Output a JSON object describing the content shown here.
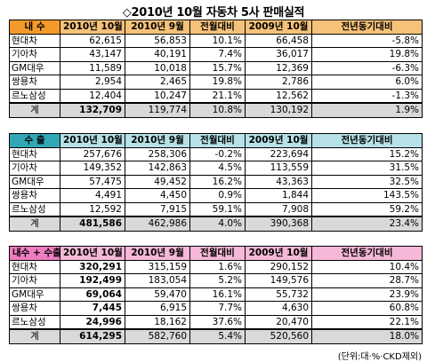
{
  "title": "◇2010년 10월 자동차 5사 판매실적",
  "columns": [
    "2010년 10월",
    "2010년 9월",
    "전월대비",
    "2009년 10월",
    "전년동기대비"
  ],
  "sections": [
    {
      "label": "내 수",
      "rows": [
        {
          "name": "현대차",
          "oct2010": "62,615",
          "sep2010": "56,853",
          "mom": "10.1%",
          "oct2009": "66,458",
          "yoy": "-5.8%"
        },
        {
          "name": "기아차",
          "oct2010": "43,147",
          "sep2010": "40,191",
          "mom": "7.4%",
          "oct2009": "36,017",
          "yoy": "19.8%"
        },
        {
          "name": "GM대우",
          "oct2010": "11,589",
          "sep2010": "10,018",
          "mom": "15.7%",
          "oct2009": "12,369",
          "yoy": "-6.3%"
        },
        {
          "name": "쌍용차",
          "oct2010": "2,954",
          "sep2010": "2,465",
          "mom": "19.8%",
          "oct2009": "2,786",
          "yoy": "6.0%"
        },
        {
          "name": "르노삼성",
          "oct2010": "12,404",
          "sep2010": "10,247",
          "mom": "21.1%",
          "oct2009": "12,562",
          "yoy": "-1.3%"
        }
      ],
      "total": {
        "name": "계",
        "oct2010": "132,709",
        "sep2010": "119,774",
        "mom": "10.8%",
        "oct2009": "130,192",
        "yoy": "1.9%"
      }
    },
    {
      "label": "수 출",
      "rows": [
        {
          "name": "현대차",
          "oct2010": "257,676",
          "sep2010": "258,306",
          "mom": "-0.2%",
          "oct2009": "223,694",
          "yoy": "15.2%"
        },
        {
          "name": "기아차",
          "oct2010": "149,352",
          "sep2010": "142,863",
          "mom": "4.5%",
          "oct2009": "113,559",
          "yoy": "31.5%"
        },
        {
          "name": "GM대우",
          "oct2010": "57,475",
          "sep2010": "49,452",
          "mom": "16.2%",
          "oct2009": "43,363",
          "yoy": "32.5%"
        },
        {
          "name": "쌍용차",
          "oct2010": "4,491",
          "sep2010": "4,450",
          "mom": "0.9%",
          "oct2009": "1,844",
          "yoy": "143.5%"
        },
        {
          "name": "르노삼성",
          "oct2010": "12,592",
          "sep2010": "7,915",
          "mom": "59.1%",
          "oct2009": "7,908",
          "yoy": "59.2%"
        }
      ],
      "total": {
        "name": "계",
        "oct2010": "481,586",
        "sep2010": "462,986",
        "mom": "4.0%",
        "oct2009": "390,368",
        "yoy": "23.4%"
      }
    },
    {
      "label": "내수 + 수출",
      "rows": [
        {
          "name": "현대차",
          "oct2010": "320,291",
          "sep2010": "315,159",
          "mom": "1.6%",
          "oct2009": "290,152",
          "yoy": "10.4%"
        },
        {
          "name": "기아차",
          "oct2010": "192,499",
          "sep2010": "183,054",
          "mom": "5.2%",
          "oct2009": "149,576",
          "yoy": "28.7%"
        },
        {
          "name": "GM대우",
          "oct2010": "69,064",
          "sep2010": "59,470",
          "mom": "16.1%",
          "oct2009": "55,732",
          "yoy": "23.9%"
        },
        {
          "name": "쌍용차",
          "oct2010": "7,445",
          "sep2010": "6,915",
          "mom": "7.7%",
          "oct2009": "4,630",
          "yoy": "60.8%"
        },
        {
          "name": "르노삼성",
          "oct2010": "24,996",
          "sep2010": "18,162",
          "mom": "37.6%",
          "oct2009": "20,470",
          "yoy": "22.1%"
        }
      ],
      "total": {
        "name": "계",
        "oct2010": "614,295",
        "sep2010": "582,760",
        "mom": "5.4%",
        "oct2009": "520,560",
        "yoy": "18.0%"
      }
    }
  ],
  "unit_note": "(단위:대·%·CKD제외)"
}
